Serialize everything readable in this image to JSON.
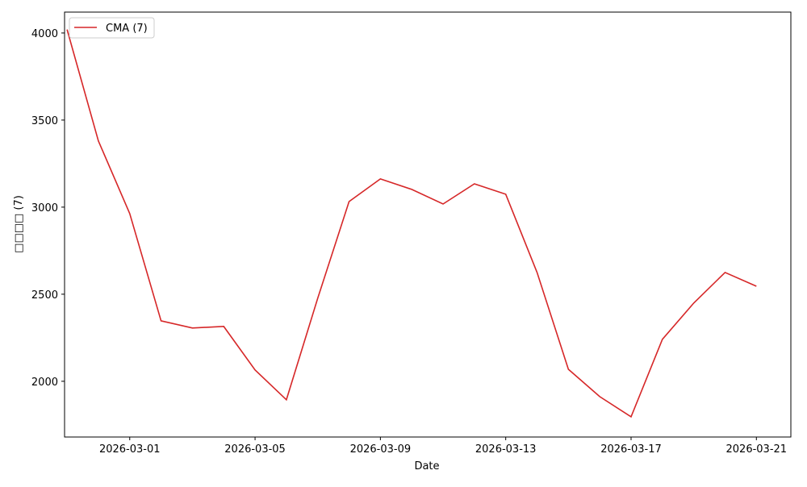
{
  "chart_data": {
    "type": "line",
    "title": "",
    "xlabel": "Date",
    "ylabel": "□□□□ (7)",
    "x": [
      "2026-02-27",
      "2026-02-28",
      "2026-03-01",
      "2026-03-02",
      "2026-03-03",
      "2026-03-04",
      "2026-03-05",
      "2026-03-06",
      "2026-03-07",
      "2026-03-08",
      "2026-03-09",
      "2026-03-10",
      "2026-03-11",
      "2026-03-12",
      "2026-03-13",
      "2026-03-14",
      "2026-03-15",
      "2026-03-16",
      "2026-03-17",
      "2026-03-18",
      "2026-03-19",
      "2026-03-20",
      "2026-03-21"
    ],
    "series": [
      {
        "name": "CMA (7)",
        "color": "#d62728",
        "values": [
          4020,
          3380,
          2963,
          2347,
          2306,
          2315,
          2065,
          1894,
          2477,
          3032,
          3162,
          3102,
          3018,
          3134,
          3074,
          2625,
          2069,
          1912,
          1796,
          2241,
          2449,
          2625,
          2546
        ]
      }
    ],
    "xticks": [
      "2026-03-01",
      "2026-03-05",
      "2026-03-09",
      "2026-03-13",
      "2026-03-17",
      "2026-03-21"
    ],
    "yticks": [
      2000,
      2500,
      3000,
      3500,
      4000
    ],
    "ylim": [
      1680,
      4120
    ],
    "xlim": [
      "2026-02-26",
      "2026-03-22"
    ],
    "grid": false,
    "legend": "top-left"
  }
}
